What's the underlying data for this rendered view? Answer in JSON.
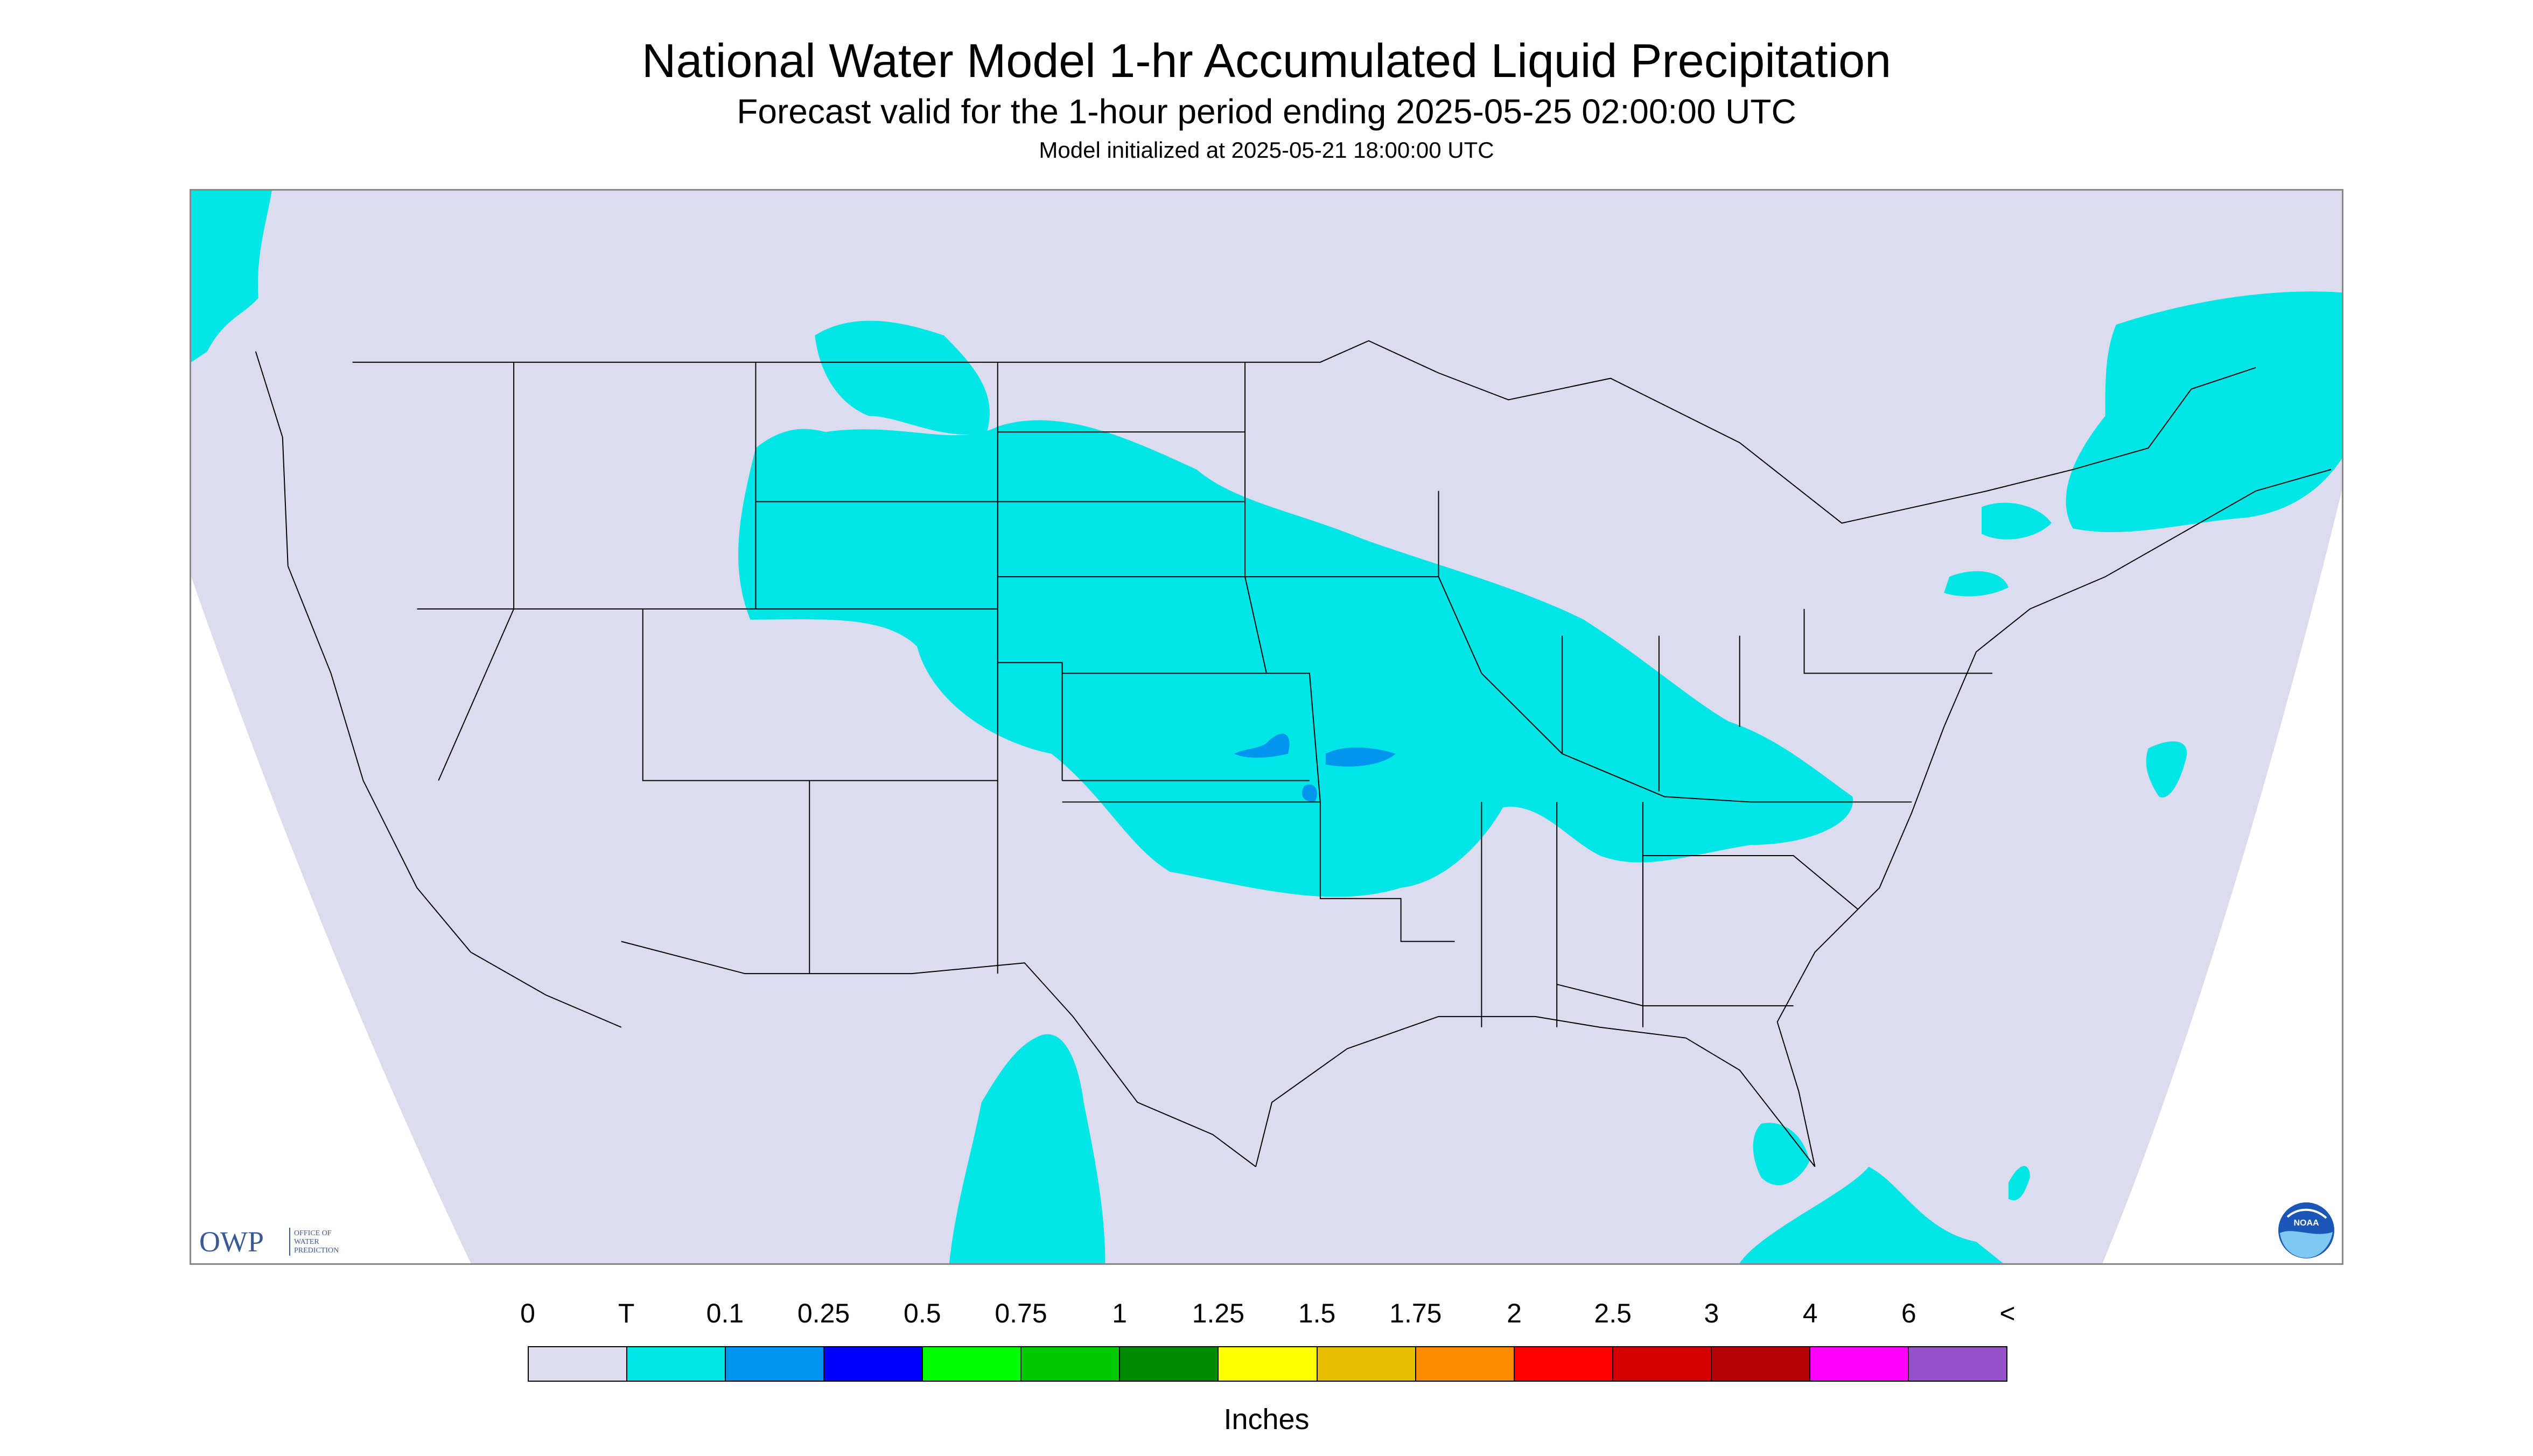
{
  "title": "National Water Model 1-hr Accumulated Liquid Precipitation",
  "subtitle": "Forecast valid for the 1-hour period ending 2025-05-25 02:00:00 UTC",
  "init_line": "Model initialized at 2025-05-21 18:00:00 UTC",
  "logos": {
    "owp_mark": "OWP",
    "owp_name": [
      "OFFICE OF",
      "WATER",
      "PREDICTION"
    ],
    "noaa_mark": "NOAA"
  },
  "legend": {
    "labels": [
      "0",
      "T",
      "0.1",
      "0.25",
      "0.5",
      "0.75",
      "1",
      "1.25",
      "1.5",
      "1.75",
      "2",
      "2.5",
      "3",
      "4",
      "6",
      "<"
    ],
    "colors": [
      "#dcdcee",
      "#00e6e6",
      "#0096f0",
      "#0000ff",
      "#00ff00",
      "#00c800",
      "#008c00",
      "#ffff00",
      "#e6be00",
      "#ff8c00",
      "#ff0000",
      "#d20000",
      "#b40000",
      "#ff00ff",
      "#9650c8"
    ],
    "units": "Inches"
  },
  "map_colors": {
    "domain_fill": "#dcdcee",
    "outside_fill": "#ffffff",
    "light_precip": "#00e6e6",
    "moderate_precip": "#0096f0",
    "borders": "#000000"
  }
}
